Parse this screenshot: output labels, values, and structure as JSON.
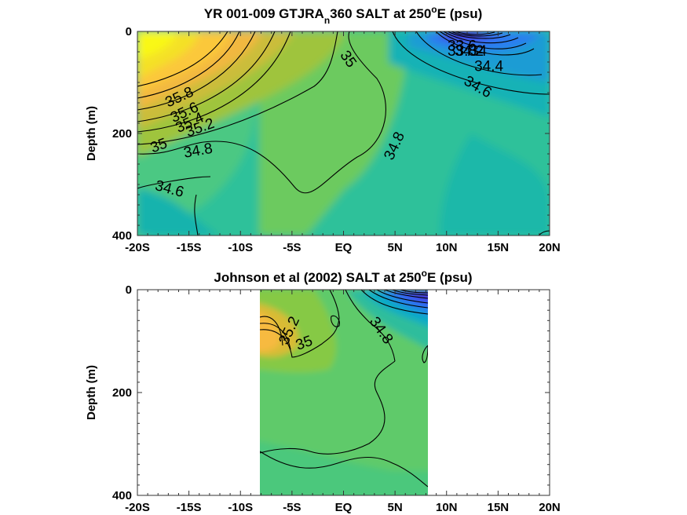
{
  "figure": {
    "panels": [
      {
        "title_pre": "YR 001-009 GTJRA",
        "title_sub": "n",
        "title_mid": "360 SALT at 250",
        "title_sup": "o",
        "title_post": "E (psu)",
        "ylabel": "Depth (m)"
      },
      {
        "title_pre": "Johnson et al (2002) SALT at 250",
        "title_sup": "o",
        "title_post": "E (psu)",
        "ylabel": "Depth (m)"
      }
    ]
  },
  "chart_data": [
    {
      "type": "heatmap",
      "title": "YR 001-009 GTJRAn360 SALT at 250oE (psu)",
      "ylabel": "Depth (m)",
      "xlabel": "",
      "x_tick_labels": [
        "-20S",
        "-15S",
        "-10S",
        "-5S",
        "EQ",
        "5N",
        "10N",
        "15N",
        "20N"
      ],
      "x_ticks": [
        -20,
        -15,
        -10,
        -5,
        0,
        5,
        10,
        15,
        20
      ],
      "y_ticks": [
        0,
        200,
        400
      ],
      "xlim": [
        -20,
        20
      ],
      "ylim": [
        0,
        400
      ],
      "y_reversed": true,
      "colormap": "parula",
      "field_blobs": [
        {
          "lat": -20,
          "depth": 20,
          "salt": 36.1,
          "spread_lat": 6,
          "spread_depth": 90
        },
        {
          "lat": -13,
          "depth": 70,
          "salt": 35.6,
          "spread_lat": 6,
          "spread_depth": 60
        },
        {
          "lat": -6,
          "depth": 140,
          "salt": 35.2,
          "spread_lat": 6,
          "spread_depth": 50
        },
        {
          "lat": 11,
          "depth": 5,
          "salt": 33.6,
          "spread_lat": 3,
          "spread_depth": 25
        },
        {
          "lat": 14,
          "depth": 30,
          "salt": 34.2,
          "spread_lat": 5,
          "spread_depth": 60
        },
        {
          "lat": 15,
          "depth": 250,
          "salt": 34.6,
          "spread_lat": 5,
          "spread_depth": 80
        },
        {
          "lat": -18,
          "depth": 360,
          "salt": 34.45,
          "spread_lat": 4,
          "spread_depth": 50
        }
      ],
      "contour_labels": [
        {
          "text": "35.8",
          "lat": -15.9,
          "depth": 130,
          "angle": -25
        },
        {
          "text": "35.6",
          "lat": -15.4,
          "depth": 160,
          "angle": -25
        },
        {
          "text": "35.4",
          "lat": -14.9,
          "depth": 180,
          "angle": -25
        },
        {
          "text": "35.2",
          "lat": -13.9,
          "depth": 190,
          "angle": -20
        },
        {
          "text": "35",
          "lat": -17.9,
          "depth": 225,
          "angle": -20
        },
        {
          "text": "34.8",
          "lat": -14.1,
          "depth": 235,
          "angle": -10
        },
        {
          "text": "34.6",
          "lat": -16.9,
          "depth": 310,
          "angle": 15
        },
        {
          "text": "35",
          "lat": 0.4,
          "depth": 55,
          "angle": 55
        },
        {
          "text": "34.8",
          "lat": 5.0,
          "depth": 225,
          "angle": -65
        },
        {
          "text": "33.6",
          "lat": 11.5,
          "depth": 30,
          "angle": 0
        },
        {
          "text": "33.8",
          "lat": 11.5,
          "depth": 40,
          "angle": 0
        },
        {
          "text": "34",
          "lat": 13.1,
          "depth": 40,
          "angle": 0
        },
        {
          "text": "34.2",
          "lat": 12.2,
          "depth": 40,
          "angle": 0
        },
        {
          "text": "34.4",
          "lat": 14.1,
          "depth": 70,
          "angle": 0
        },
        {
          "text": "34.6",
          "lat": 13.0,
          "depth": 110,
          "angle": 30
        }
      ]
    },
    {
      "type": "heatmap",
      "title": "Johnson et al (2002) SALT at 250oE (psu)",
      "ylabel": "Depth (m)",
      "xlabel": "",
      "x_tick_labels": [
        "-20S",
        "-15S",
        "-10S",
        "-5S",
        "EQ",
        "5N",
        "10N",
        "15N",
        "20N"
      ],
      "x_ticks": [
        -20,
        -15,
        -10,
        -5,
        0,
        5,
        10,
        15,
        20
      ],
      "y_ticks": [
        0,
        200,
        400
      ],
      "xlim": [
        -20,
        20
      ],
      "ylim": [
        0,
        400
      ],
      "y_reversed": true,
      "colormap": "parula",
      "data_lat_range": [
        -8,
        8.3
      ],
      "field_blobs": [
        {
          "lat": -8,
          "depth": 90,
          "salt": 35.5,
          "spread_lat": 2.5,
          "spread_depth": 40
        },
        {
          "lat": -4,
          "depth": 60,
          "salt": 35.15,
          "spread_lat": 2,
          "spread_depth": 40
        },
        {
          "lat": 7,
          "depth": 10,
          "salt": 33.9,
          "spread_lat": 2.5,
          "spread_depth": 35
        },
        {
          "lat": 2,
          "depth": 300,
          "salt": 34.88,
          "spread_lat": 4,
          "spread_depth": 100
        }
      ],
      "contour_labels": [
        {
          "text": "35.2",
          "lat": -5.2,
          "depth": 80,
          "angle": -65
        },
        {
          "text": "35",
          "lat": -3.8,
          "depth": 105,
          "angle": -20
        },
        {
          "text": "34.8",
          "lat": 3.6,
          "depth": 80,
          "angle": 55
        }
      ]
    }
  ]
}
